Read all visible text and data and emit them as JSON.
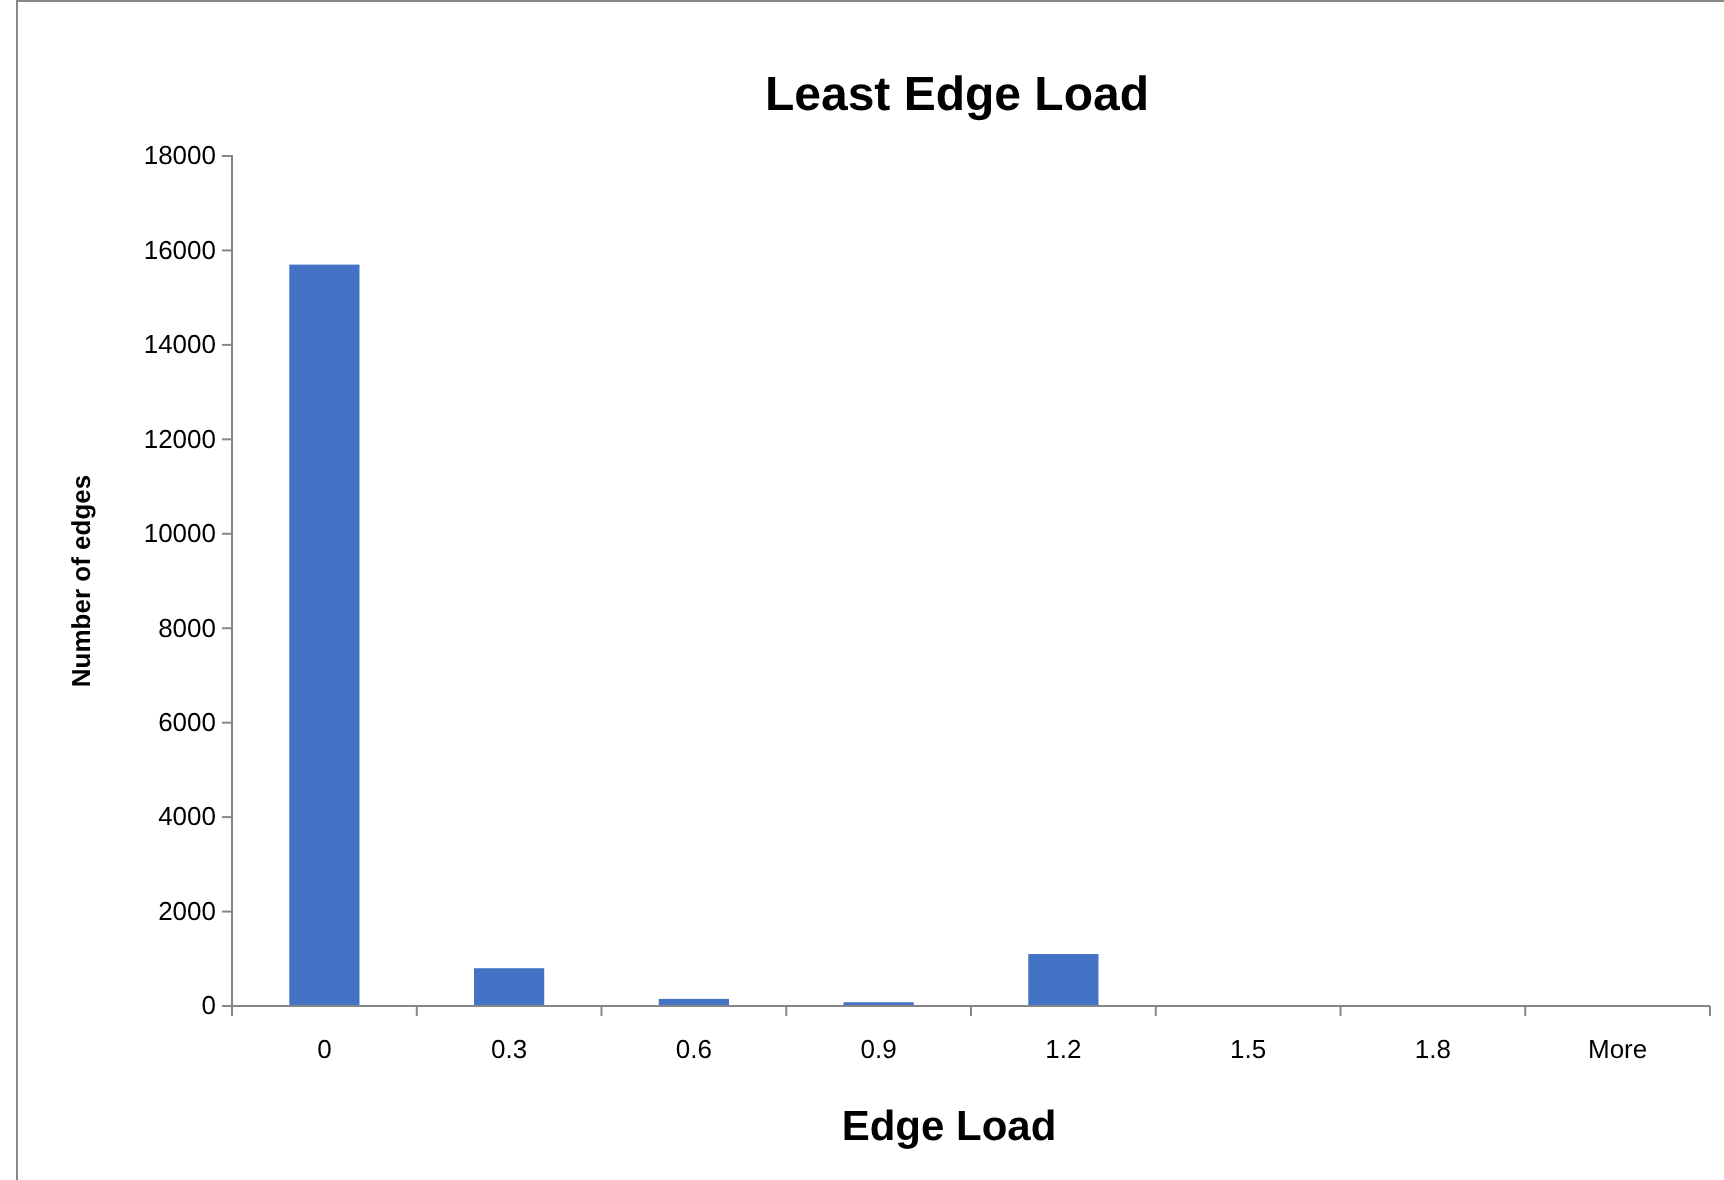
{
  "chart_data": {
    "type": "bar",
    "title": "Least Edge Load",
    "xlabel": "Edge Load",
    "ylabel": "Number of edges",
    "categories": [
      "0",
      "0.3",
      "0.6",
      "0.9",
      "1.2",
      "1.5",
      "1.8",
      "More"
    ],
    "values": [
      15700,
      800,
      150,
      80,
      1100,
      0,
      0,
      0
    ],
    "color": "#4472c4",
    "ylim": [
      0,
      18000
    ],
    "yticks": [
      0,
      2000,
      4000,
      6000,
      8000,
      10000,
      12000,
      14000,
      16000,
      18000
    ],
    "grid": false
  }
}
